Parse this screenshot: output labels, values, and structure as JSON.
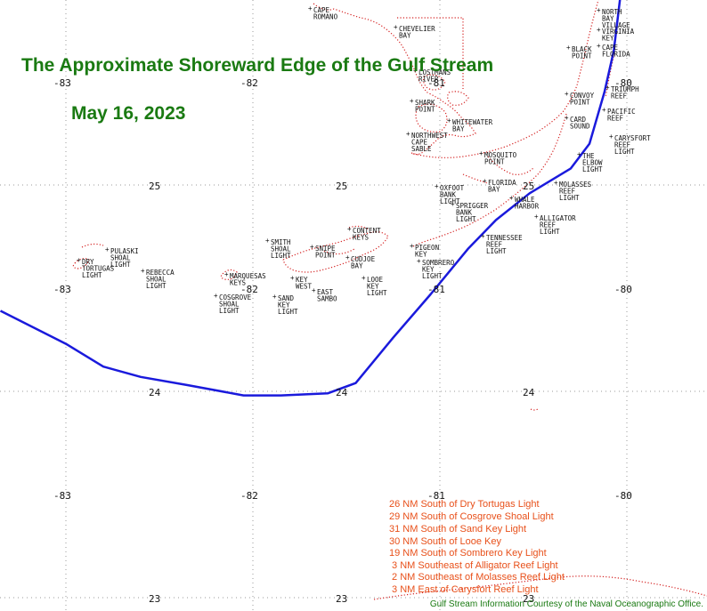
{
  "title": "The Approximate Shoreward Edge of the Gulf Stream",
  "date": "May 16, 2023",
  "colors": {
    "title": "#1a7a12",
    "gulf_stream_line": "#1a1adc",
    "coastline": "#d42020",
    "distance_text": "#e8501a",
    "grid": "#9a9a9a"
  },
  "grid_labels": {
    "longitudes": [
      "-83",
      "-82",
      "-81",
      "-80"
    ],
    "latitudes": [
      "25",
      "24",
      "23"
    ]
  },
  "places": [
    "CAPE ROMANO",
    "CHEVELIER BAY",
    "LOSTMANS RIVER",
    "SHARK POINT",
    "WHITEWATER BAY",
    "NORTHWEST CAPE SABLE",
    "MOSQUITO POINT",
    "FLORIDA BAY",
    "OXFOOT BANK LIGHT",
    "SPRIGGER BANK LIGHT",
    "NORTH BAY VILLAGE",
    "VIRGINIA KEY",
    "CAPE FLORIDA",
    "BLACK POINT",
    "TRIUMPH REEF",
    "CONVOY POINT",
    "PACIFIC REEF",
    "CARD SOUND",
    "CARYSFORT REEF LIGHT",
    "THE ELBOW LIGHT",
    "MOLASSES REEF LIGHT",
    "WHALE HARBOR",
    "ALLIGATOR REEF LIGHT",
    "TENNESSEE REEF LIGHT",
    "CONTENT KEYS",
    "PIGEON KEY",
    "SOMBRERO KEY LIGHT",
    "SMITH SHOAL LIGHT",
    "SNIPE POINT",
    "CUDJOE BAY",
    "LOOE KEY LIGHT",
    "KEY WEST",
    "EAST SAMBO",
    "SAND KEY LIGHT",
    "MARQUESAS KEYS",
    "COSGROVE SHOAL LIGHT",
    "PULASKI SHOAL LIGHT",
    "DRY TORTUGAS LIGHT",
    "REBECCA SHOAL LIGHT"
  ],
  "gulf_stream_edge": [
    {
      "lon": -83.35,
      "lat": 24.39
    },
    {
      "lon": -83.0,
      "lat": 24.23
    },
    {
      "lon": -82.8,
      "lat": 24.12
    },
    {
      "lon": -82.6,
      "lat": 24.07
    },
    {
      "lon": -82.35,
      "lat": 24.03
    },
    {
      "lon": -82.05,
      "lat": 23.98
    },
    {
      "lon": -81.85,
      "lat": 23.98
    },
    {
      "lon": -81.6,
      "lat": 23.99
    },
    {
      "lon": -81.45,
      "lat": 24.04
    },
    {
      "lon": -81.25,
      "lat": 24.26
    },
    {
      "lon": -81.05,
      "lat": 24.47
    },
    {
      "lon": -80.85,
      "lat": 24.69
    },
    {
      "lon": -80.7,
      "lat": 24.83
    },
    {
      "lon": -80.52,
      "lat": 24.96
    },
    {
      "lon": -80.3,
      "lat": 25.08
    },
    {
      "lon": -80.2,
      "lat": 25.2
    },
    {
      "lon": -80.12,
      "lat": 25.45
    },
    {
      "lon": -80.07,
      "lat": 25.65
    },
    {
      "lon": -80.03,
      "lat": 25.95
    }
  ],
  "distances": [
    "26 NM South of Dry Tortugas Light",
    "29 NM South of Cosgrove Shoal Light",
    "31 NM South of Sand Key Light",
    "30 NM South of Looe Key",
    "19 NM South of Sombrero Key Light",
    " 3 NM Southeast of Alligator Reef Light",
    " 2 NM Southeast of Molasses Reef Light",
    " 3 NM East of Carysfort Reef Light"
  ],
  "credit": "Gulf Stream Information Courtesy of the Naval Oceanographic Office."
}
